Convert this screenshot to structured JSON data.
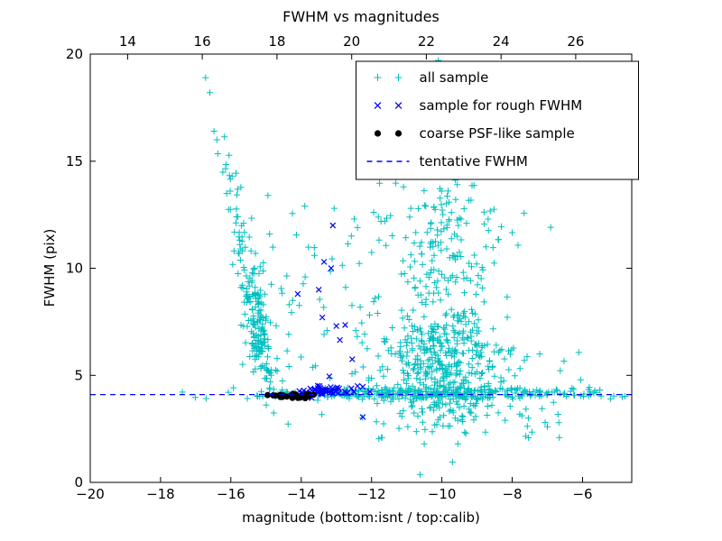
{
  "chart_data": {
    "type": "scatter",
    "title": "FWHM vs magnitudes",
    "xlabel": "magnitude (bottom:isnt / top:calib)",
    "ylabel": "FWHM (pix)",
    "xlim": [
      -20,
      -4.6
    ],
    "ylim": [
      0,
      20
    ],
    "x_ticks_bottom": [
      -20,
      -18,
      -16,
      -14,
      -12,
      -10,
      -8,
      -6
    ],
    "top_axis": {
      "lim": [
        13,
        27.5
      ],
      "ticks": [
        14,
        16,
        18,
        20,
        22,
        24,
        26
      ]
    },
    "y_ticks": [
      0,
      5,
      10,
      15,
      20
    ],
    "grid": false,
    "legend_position": "upper right",
    "tentative_fwhm": {
      "value": 4.1,
      "color": "#0000ff",
      "dash": [
        6,
        5
      ]
    },
    "legend": [
      {
        "label": "all sample",
        "marker": "plus",
        "color": "#00bfbf"
      },
      {
        "label": "sample for rough FWHM",
        "marker": "x",
        "color": "#0000ff"
      },
      {
        "label": "coarse PSF-like sample",
        "marker": "dot",
        "color": "#000000"
      },
      {
        "label": "tentative FWHM",
        "marker": "dashed-line",
        "color": "#0000ff"
      }
    ],
    "seed": 7,
    "series": [
      {
        "name": "all sample",
        "marker": "plus",
        "color": "#00bfbf",
        "stroke_width": 1,
        "points": [
          [
            -16.72,
            18.9
          ],
          [
            -16.6,
            18.2
          ],
          [
            -16.48,
            16.4
          ],
          [
            -16.4,
            16.0
          ],
          [
            -16.02,
            13.6
          ],
          [
            -15.84,
            12.4
          ],
          [
            -14.9,
            11.6
          ],
          [
            -13.9,
            12.9
          ],
          [
            -12.4,
            11.9
          ],
          [
            -11.9,
            8.6
          ],
          [
            -10.1,
            19.7
          ],
          [
            -9.3,
            18.9
          ],
          [
            -10.5,
            1.8
          ],
          [
            -9.7,
            0.95
          ],
          [
            -8.2,
            2.9
          ],
          [
            -7.0,
            2.6
          ],
          [
            -6.3,
            4.4
          ],
          [
            -5.6,
            4.2
          ],
          [
            -5.2,
            3.9
          ]
        ],
        "clusters": [
          {
            "kind": "trail",
            "n": 150,
            "x0": -16.75,
            "y0": 19.0,
            "x1": -14.9,
            "y1": 4.8,
            "jx": 0.12,
            "jy": 0.8,
            "bias": 0.42
          },
          {
            "kind": "gauss",
            "n": 60,
            "cx": -15.25,
            "cy": 7.6,
            "sx": 0.22,
            "sy": 1.2
          },
          {
            "kind": "gauss",
            "n": 45,
            "cx": -13.6,
            "cy": 8.0,
            "sx": 1.0,
            "sy": 2.4
          },
          {
            "kind": "gauss",
            "n": 420,
            "cx": -9.85,
            "cy": 5.4,
            "sx": 0.8,
            "sy": 1.4
          },
          {
            "kind": "gauss",
            "n": 170,
            "cx": -9.95,
            "cy": 11.3,
            "sx": 0.9,
            "sy": 1.9
          },
          {
            "kind": "gauss",
            "n": 22,
            "cx": -10.0,
            "cy": 17.3,
            "sx": 0.8,
            "sy": 1.2
          },
          {
            "kind": "gauss",
            "n": 270,
            "cx": -10.3,
            "cy": 4.15,
            "sx": 2.3,
            "sy": 0.15
          },
          {
            "kind": "uniform",
            "n": 60,
            "x0": -14.9,
            "x1": -5.4,
            "y0": 4.0,
            "y1": 4.35
          },
          {
            "kind": "uniform",
            "n": 22,
            "x0": -12.6,
            "x1": -11.0,
            "y0": 4.3,
            "y1": 8.5
          },
          {
            "kind": "uniform",
            "n": 30,
            "x0": -12.3,
            "x1": -6.2,
            "y0": 2.0,
            "y1": 3.8
          },
          {
            "kind": "uniform",
            "n": 10,
            "x0": -8.4,
            "x1": -6.0,
            "y0": 4.6,
            "y1": 6.6
          }
        ]
      },
      {
        "name": "sample for rough FWHM",
        "marker": "x",
        "color": "#0000ff",
        "stroke_width": 1.2,
        "points": [
          [
            -13.1,
            12.0
          ],
          [
            -13.35,
            10.3
          ],
          [
            -13.15,
            10.0
          ],
          [
            -14.1,
            8.8
          ],
          [
            -13.5,
            9.0
          ],
          [
            -13.4,
            7.7
          ],
          [
            -13.0,
            7.3
          ],
          [
            -12.75,
            7.35
          ],
          [
            -12.9,
            6.65
          ],
          [
            -12.55,
            5.75
          ],
          [
            -13.2,
            4.95
          ],
          [
            -12.4,
            4.5
          ],
          [
            -12.25,
            3.05
          ]
        ],
        "clusters": [
          {
            "kind": "gauss",
            "n": 45,
            "cx": -13.2,
            "cy": 4.3,
            "sx": 0.45,
            "sy": 0.12
          }
        ]
      },
      {
        "name": "coarse PSF-like sample",
        "marker": "dot",
        "color": "#000000",
        "stroke_width": 1,
        "points": [],
        "clusters": [
          {
            "kind": "gauss",
            "n": 30,
            "cx": -14.3,
            "cy": 4.05,
            "sx": 0.33,
            "sy": 0.06
          }
        ]
      }
    ]
  }
}
